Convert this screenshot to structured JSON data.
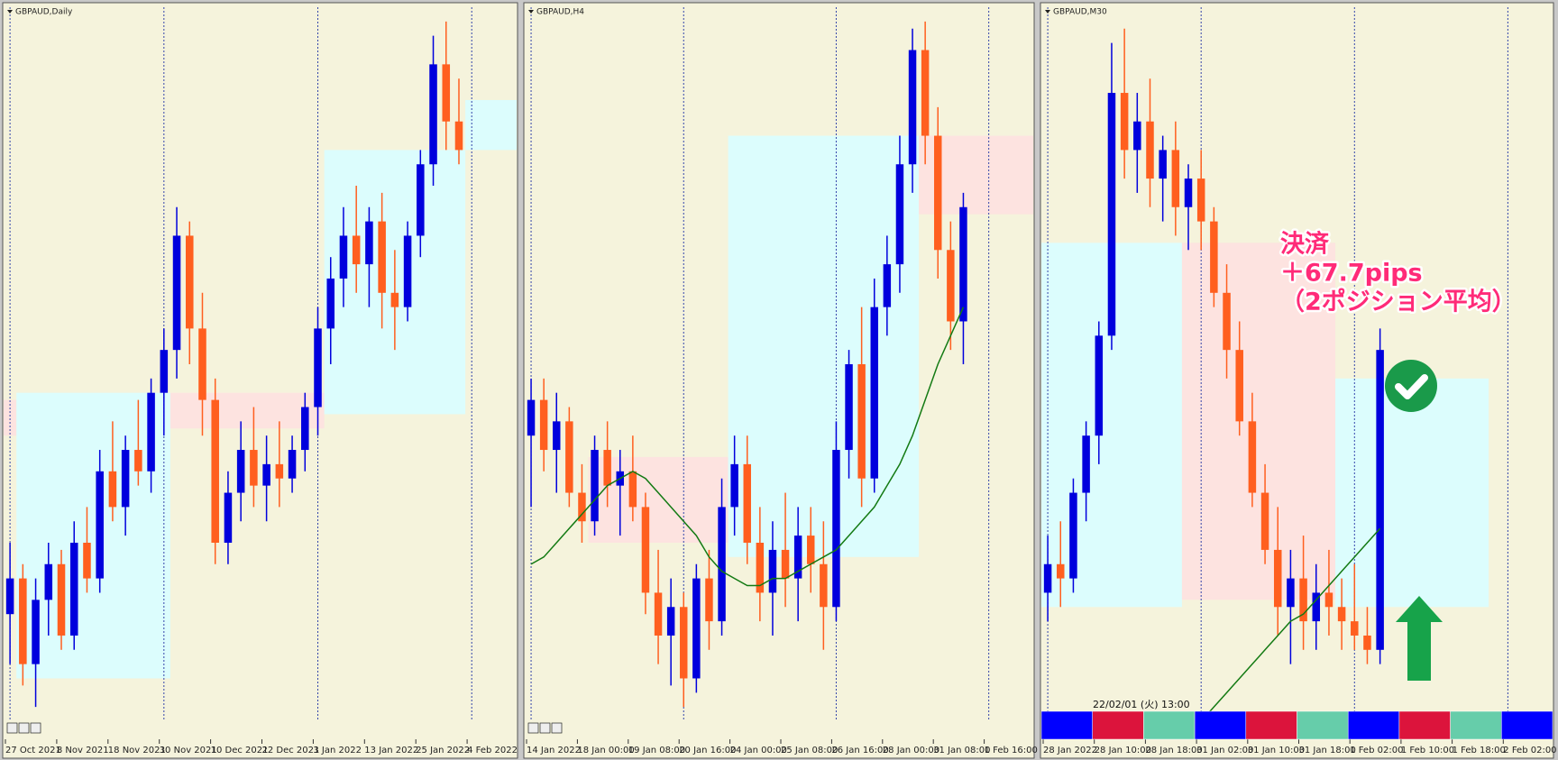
{
  "chart_data": [
    {
      "type": "candlestick",
      "title": "GBPAUD,Daily",
      "categories": [
        "27 Oct 2021",
        null,
        null,
        null,
        "8 Nov 2021",
        null,
        null,
        null,
        "18 Nov 2021",
        null,
        null,
        null,
        "30 Nov 2021",
        null,
        null,
        null,
        "10 Dec 2021",
        null,
        null,
        null,
        "22 Dec 2021",
        null,
        null,
        null,
        "3 Jan 2022",
        null,
        null,
        null,
        "13 Jan 2022",
        null,
        null,
        null,
        "25 Jan 2022",
        null,
        null,
        null,
        "4 Feb 2022",
        null,
        null,
        null
      ],
      "open": [
        15,
        20,
        8,
        17,
        22,
        12,
        25,
        20,
        35,
        30,
        38,
        35,
        46,
        52,
        68,
        55,
        45,
        25,
        32,
        38,
        33,
        36,
        34,
        38,
        44,
        55,
        62,
        68,
        64,
        70,
        60,
        58,
        68,
        78,
        92,
        84,
        null,
        null,
        null,
        null
      ],
      "high": [
        25,
        22,
        20,
        25,
        24,
        28,
        30,
        38,
        42,
        40,
        45,
        48,
        55,
        72,
        70,
        60,
        48,
        35,
        42,
        44,
        40,
        42,
        40,
        46,
        58,
        65,
        72,
        75,
        72,
        74,
        66,
        70,
        80,
        96,
        98,
        90,
        null,
        null,
        null,
        null
      ],
      "low": [
        8,
        5,
        2,
        12,
        10,
        10,
        18,
        18,
        28,
        26,
        33,
        32,
        40,
        48,
        50,
        40,
        22,
        22,
        28,
        30,
        28,
        30,
        32,
        35,
        40,
        50,
        58,
        60,
        58,
        55,
        52,
        56,
        65,
        75,
        80,
        78,
        null,
        null,
        null,
        null
      ],
      "close": [
        20,
        8,
        17,
        22,
        12,
        25,
        20,
        35,
        30,
        38,
        35,
        46,
        52,
        68,
        55,
        45,
        25,
        32,
        38,
        33,
        36,
        34,
        38,
        44,
        55,
        62,
        68,
        64,
        70,
        60,
        58,
        68,
        78,
        92,
        84,
        80,
        null,
        null,
        null,
        null
      ],
      "ylim": [
        0,
        100
      ],
      "up_color": "#0000dd",
      "down_color": "#ff5f1f",
      "zones": [
        {
          "from": 0,
          "to": 1,
          "low": 40,
          "high": 45,
          "color": "#fde3e0"
        },
        {
          "from": 1,
          "to": 13,
          "low": 6,
          "high": 46,
          "color": "#dcfdfd"
        },
        {
          "from": 13,
          "to": 25,
          "low": 41,
          "high": 46,
          "color": "#fde3e0"
        },
        {
          "from": 25,
          "to": 36,
          "low": 43,
          "high": 80,
          "color": "#dcfdfd"
        },
        {
          "from": 36,
          "to": 40,
          "low": 80,
          "high": 87,
          "color": "#dcfdfd"
        }
      ]
    },
    {
      "type": "candlestick",
      "title": "GBPAUD,H4",
      "categories": [
        "14 Jan 2022",
        null,
        null,
        null,
        "18 Jan 00:00",
        null,
        null,
        null,
        "19 Jan 08:00",
        null,
        null,
        null,
        "20 Jan 16:00",
        null,
        null,
        null,
        "24 Jan 00:00",
        null,
        null,
        null,
        "25 Jan 08:00",
        null,
        null,
        null,
        "26 Jan 16:00",
        null,
        null,
        null,
        "28 Jan 00:00",
        null,
        null,
        null,
        "31 Jan 08:00",
        null,
        null,
        null,
        "1 Feb 16:00",
        null,
        null,
        null
      ],
      "open": [
        40,
        45,
        38,
        42,
        32,
        28,
        38,
        33,
        35,
        30,
        18,
        12,
        16,
        6,
        20,
        14,
        30,
        36,
        25,
        18,
        24,
        20,
        26,
        22,
        16,
        38,
        50,
        34,
        58,
        64,
        78,
        94,
        82,
        66,
        56,
        null,
        null,
        null,
        null,
        null
      ],
      "high": [
        48,
        48,
        46,
        44,
        36,
        40,
        42,
        38,
        40,
        32,
        24,
        20,
        18,
        22,
        24,
        34,
        40,
        40,
        30,
        28,
        32,
        30,
        30,
        28,
        42,
        52,
        58,
        62,
        68,
        82,
        97,
        98,
        86,
        70,
        74,
        null,
        null,
        null,
        null,
        null
      ],
      "low": [
        30,
        35,
        32,
        30,
        25,
        26,
        30,
        26,
        28,
        15,
        8,
        5,
        2,
        4,
        10,
        12,
        26,
        22,
        14,
        12,
        16,
        14,
        18,
        10,
        14,
        34,
        30,
        32,
        54,
        60,
        74,
        78,
        62,
        52,
        50,
        null,
        null,
        null,
        null,
        null
      ],
      "close": [
        45,
        38,
        42,
        32,
        28,
        38,
        33,
        35,
        30,
        18,
        12,
        16,
        6,
        20,
        14,
        30,
        36,
        25,
        18,
        24,
        20,
        26,
        22,
        16,
        38,
        50,
        34,
        58,
        64,
        78,
        94,
        82,
        66,
        56,
        72,
        null,
        null,
        null,
        null,
        null
      ],
      "ma": [
        22,
        23,
        25,
        27,
        29,
        31,
        33,
        34,
        35,
        34,
        32,
        30,
        28,
        26,
        23,
        21,
        20,
        19,
        19,
        20,
        20,
        21,
        22,
        23,
        24,
        26,
        28,
        30,
        33,
        36,
        40,
        45,
        50,
        54,
        58,
        null,
        null,
        null,
        null,
        null
      ],
      "ma_color": "#137a13",
      "ylim": [
        0,
        100
      ],
      "up_color": "#0000dd",
      "down_color": "#ff5f1f",
      "zones": [
        {
          "from": 5,
          "to": 16,
          "low": 25,
          "high": 37,
          "color": "#fde3e0"
        },
        {
          "from": 16,
          "to": 31,
          "low": 23,
          "high": 82,
          "color": "#dcfdfd"
        },
        {
          "from": 31,
          "to": 40,
          "low": 71,
          "high": 82,
          "color": "#fde3e0"
        }
      ]
    },
    {
      "type": "candlestick",
      "title": "GBPAUD,M30",
      "categories": [
        "28 Jan 2022",
        null,
        null,
        null,
        "28 Jan 10:00",
        null,
        null,
        null,
        "28 Jan 18:00",
        null,
        null,
        null,
        "31 Jan 02:00",
        null,
        null,
        null,
        "31 Jan 10:00",
        null,
        null,
        null,
        "31 Jan 18:00",
        null,
        null,
        null,
        "1 Feb 02:00",
        null,
        null,
        null,
        "1 Feb 10:00",
        null,
        null,
        null,
        "1 Feb 18:00",
        null,
        null,
        null,
        "2 Feb 02:00",
        null,
        null,
        null
      ],
      "open": [
        18,
        22,
        20,
        32,
        40,
        54,
        88,
        80,
        84,
        76,
        80,
        72,
        76,
        70,
        60,
        52,
        42,
        32,
        24,
        16,
        20,
        14,
        18,
        16,
        14,
        12,
        10,
        null,
        null,
        null,
        null,
        null,
        null,
        null,
        null,
        null,
        null,
        null,
        null,
        null
      ],
      "high": [
        26,
        28,
        34,
        42,
        56,
        95,
        97,
        88,
        90,
        82,
        84,
        78,
        80,
        72,
        64,
        56,
        46,
        36,
        30,
        24,
        26,
        22,
        24,
        20,
        22,
        16,
        55,
        null,
        null,
        null,
        null,
        null,
        null,
        null,
        null,
        null,
        null,
        null,
        null,
        null
      ],
      "low": [
        14,
        16,
        18,
        28,
        36,
        52,
        76,
        74,
        72,
        70,
        68,
        66,
        66,
        58,
        48,
        40,
        30,
        22,
        12,
        8,
        10,
        10,
        12,
        10,
        10,
        8,
        8,
        null,
        null,
        null,
        null,
        null,
        null,
        null,
        null,
        null,
        null,
        null,
        null,
        null
      ],
      "close": [
        22,
        20,
        32,
        40,
        54,
        88,
        80,
        84,
        76,
        80,
        72,
        76,
        70,
        60,
        52,
        42,
        32,
        24,
        16,
        20,
        14,
        18,
        16,
        14,
        12,
        10,
        52,
        null,
        null,
        null,
        null,
        null,
        null,
        null,
        null,
        null,
        null,
        null,
        null,
        null
      ],
      "ma": [
        null,
        null,
        null,
        null,
        null,
        null,
        null,
        null,
        null,
        null,
        null,
        null,
        0,
        2,
        4,
        6,
        8,
        10,
        12,
        14,
        15,
        17,
        19,
        21,
        23,
        25,
        27,
        null,
        null,
        null,
        null,
        null,
        null,
        null,
        null,
        null,
        null,
        null,
        null,
        null
      ],
      "ma_color": "#137a13",
      "ylim": [
        0,
        100
      ],
      "up_color": "#0000dd",
      "down_color": "#ff5f1f",
      "zones": [
        {
          "from": 0,
          "to": 11,
          "low": 16,
          "high": 67,
          "color": "#dcfdfd"
        },
        {
          "from": 11,
          "to": 23,
          "low": 17,
          "high": 67,
          "color": "#fde3e0"
        },
        {
          "from": 23,
          "to": 35,
          "low": 16,
          "high": 48,
          "color": "#dcfdfd"
        }
      ],
      "annotation": [
        "決済",
        "＋67.7pips",
        "（2ポジション平均）"
      ],
      "timestamp": "22/02/01 (火) 13:00",
      "session_colors": [
        "#0000ff",
        "#dc143c",
        "#66cdaa",
        "#0000ff",
        "#dc143c",
        "#66cdaa",
        "#0000ff",
        "#dc143c",
        "#66cdaa",
        "#0000ff"
      ]
    }
  ]
}
